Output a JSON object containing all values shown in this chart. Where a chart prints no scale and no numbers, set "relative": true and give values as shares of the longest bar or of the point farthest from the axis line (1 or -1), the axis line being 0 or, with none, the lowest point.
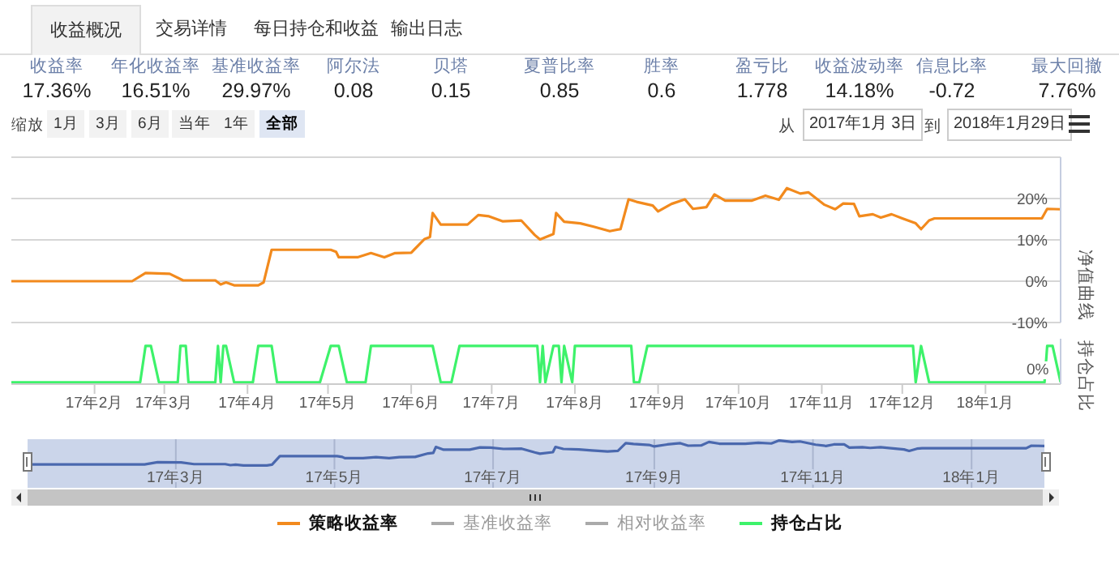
{
  "chart_data": [
    {
      "type": "other",
      "categories": [
        "收益率",
        "年化收益率",
        "基准收益率",
        "阿尔法",
        "贝塔",
        "夏普比率",
        "胜率",
        "盈亏比",
        "收益波动率",
        "信息比率",
        "最大回撤"
      ],
      "values": [
        17.36,
        16.51,
        29.97,
        0.08,
        0.15,
        0.85,
        0.6,
        1.778,
        14.18,
        -0.72,
        7.76
      ],
      "value_labels": [
        "17.36%",
        "16.51%",
        "29.97%",
        "0.08",
        "0.15",
        "0.85",
        "0.6",
        "1.778",
        "14.18%",
        "-0.72",
        "7.76%"
      ],
      "annotations": [
        "收益概况",
        "交易详情",
        "每日持仓和收益",
        "输出日志",
        "缩放",
        "1月",
        "3月",
        "6月",
        "当年",
        "1年",
        "全部",
        "从",
        "2017年1月 3日",
        "到",
        "2018年1月29日"
      ]
    },
    {
      "type": "line",
      "ylabel": "净值曲线",
      "xlim": [
        "2017-01-03",
        "2018-01-29"
      ],
      "ylim": [
        -10,
        30
      ],
      "yticks": [
        {
          "value": -10,
          "label": "-10%"
        },
        {
          "value": 0,
          "label": "0%"
        },
        {
          "value": 10,
          "label": "10%"
        },
        {
          "value": 20,
          "label": "20%"
        }
      ],
      "grid": "y",
      "tick_labels": "y",
      "legend": "bottom",
      "series": [
        {
          "name": "策略收益率",
          "color": "#f28a1d",
          "x": [
            "2017-01-03",
            "2017-02-17",
            "2017-02-22",
            "2017-03-03",
            "2017-03-08",
            "2017-03-20",
            "2017-03-22",
            "2017-03-24",
            "2017-03-27",
            "2017-04-05",
            "2017-04-07",
            "2017-04-10",
            "2017-05-02",
            "2017-05-04",
            "2017-05-05",
            "2017-05-12",
            "2017-05-17",
            "2017-05-22",
            "2017-05-26",
            "2017-06-01",
            "2017-06-06",
            "2017-06-08",
            "2017-06-09",
            "2017-06-12",
            "2017-06-22",
            "2017-06-26",
            "2017-06-30",
            "2017-07-05",
            "2017-07-12",
            "2017-07-17",
            "2017-07-19",
            "2017-07-24",
            "2017-07-25",
            "2017-07-28",
            "2017-08-03",
            "2017-08-08",
            "2017-08-14",
            "2017-08-18",
            "2017-08-21",
            "2017-08-24",
            "2017-08-30",
            "2017-09-01",
            "2017-09-06",
            "2017-09-11",
            "2017-09-14",
            "2017-09-19",
            "2017-09-22",
            "2017-09-26",
            "2017-10-06",
            "2017-10-11",
            "2017-10-16",
            "2017-10-19",
            "2017-10-24",
            "2017-10-27",
            "2017-11-02",
            "2017-11-06",
            "2017-11-09",
            "2017-11-13",
            "2017-11-15",
            "2017-11-20",
            "2017-11-23",
            "2017-11-27",
            "2017-12-01",
            "2017-12-06",
            "2017-12-08",
            "2017-12-11",
            "2017-12-13",
            "2018-01-22",
            "2018-01-24",
            "2018-01-29"
          ],
          "values": [
            0,
            0,
            2,
            1.8,
            0.2,
            0.2,
            -0.8,
            -0.3,
            -1,
            -1,
            -0.3,
            7.6,
            7.6,
            7.1,
            5.8,
            5.8,
            6.8,
            5.8,
            6.8,
            6.9,
            10.2,
            10.7,
            16.5,
            13.7,
            13.7,
            16,
            15.7,
            14.5,
            14.7,
            11.2,
            10.1,
            11.4,
            16.5,
            14.4,
            14,
            13.2,
            12.1,
            12.6,
            19.8,
            19.2,
            18.3,
            16.9,
            18.7,
            19.8,
            17.5,
            17.9,
            21,
            19.5,
            19.5,
            20.7,
            19.7,
            22.5,
            21.2,
            21.5,
            18.5,
            17.4,
            18.8,
            18.7,
            15.7,
            16.2,
            15.4,
            16.2,
            15.2,
            14,
            12.6,
            14.7,
            15.2,
            15.2,
            17.5,
            17.4
          ]
        },
        {
          "name": "基准收益率",
          "color": "#aaaaaa"
        },
        {
          "name": "相对收益率",
          "color": "#aaaaaa"
        }
      ]
    },
    {
      "type": "line",
      "ylabel": "持仓占比",
      "relative": true,
      "annotations": [
        "0%"
      ],
      "xlim": [
        "2017-01-03",
        "2018-01-29"
      ],
      "xticks": [
        {
          "value": "2017-02-03",
          "label": "17年2月"
        },
        {
          "value": "2017-03-01",
          "label": "17年3月"
        },
        {
          "value": "2017-04-01",
          "label": "17年4月"
        },
        {
          "value": "2017-05-01",
          "label": "17年5月"
        },
        {
          "value": "2017-06-01",
          "label": "17年6月"
        },
        {
          "value": "2017-07-01",
          "label": "17年7月"
        },
        {
          "value": "2017-08-01",
          "label": "17年8月"
        },
        {
          "value": "2017-09-01",
          "label": "17年9月"
        },
        {
          "value": "2017-10-01",
          "label": "17年10月"
        },
        {
          "value": "2017-11-01",
          "label": "17年11月"
        },
        {
          "value": "2017-12-01",
          "label": "17年12月"
        },
        {
          "value": "2018-01-01",
          "label": "18年1月"
        }
      ],
      "legend": "bottom",
      "series": [
        {
          "name": "持仓占比",
          "color": "#3df26a",
          "x": [
            "2017-01-03",
            "2017-02-20",
            "2017-02-22",
            "2017-02-24",
            "2017-02-27",
            "2017-03-06",
            "2017-03-07",
            "2017-03-09",
            "2017-03-10",
            "2017-03-20",
            "2017-03-21",
            "2017-03-22",
            "2017-03-23",
            "2017-03-24",
            "2017-03-27",
            "2017-04-03",
            "2017-04-05",
            "2017-04-10",
            "2017-04-12",
            "2017-04-28",
            "2017-05-02",
            "2017-05-05",
            "2017-05-08",
            "2017-05-15",
            "2017-05-17",
            "2017-06-09",
            "2017-06-12",
            "2017-06-16",
            "2017-06-19",
            "2017-07-18",
            "2017-07-19",
            "2017-07-20",
            "2017-07-21",
            "2017-07-24",
            "2017-07-26",
            "2017-07-27",
            "2017-07-28",
            "2017-07-31",
            "2017-08-01",
            "2017-08-22",
            "2017-08-23",
            "2017-08-25",
            "2017-08-28",
            "2017-12-05",
            "2017-12-06",
            "2017-12-08",
            "2017-12-11",
            "2018-01-23",
            "2018-01-24",
            "2018-01-26",
            "2018-01-29"
          ],
          "values": [
            0,
            0,
            1,
            1,
            0,
            0,
            1,
            1,
            0,
            0,
            1,
            0,
            1,
            1,
            0,
            0,
            1,
            1,
            0,
            0,
            1,
            1,
            0,
            0,
            1,
            1,
            0,
            0,
            1,
            1,
            0,
            1,
            0,
            1,
            1,
            0,
            1,
            0,
            1,
            1,
            0,
            0,
            1,
            1,
            0,
            1,
            0,
            0,
            1,
            1,
            0
          ]
        }
      ]
    },
    {
      "type": "line",
      "relative": true,
      "xlim": [
        "2017-01-03",
        "2018-01-29"
      ],
      "grid": "x",
      "xticks": [
        {
          "value": "2017-03-01",
          "label": "17年3月"
        },
        {
          "value": "2017-05-01",
          "label": "17年5月"
        },
        {
          "value": "2017-07-01",
          "label": "17年7月"
        },
        {
          "value": "2017-09-01",
          "label": "17年9月"
        },
        {
          "value": "2017-11-01",
          "label": "17年11月"
        },
        {
          "value": "2018-01-01",
          "label": "18年1月"
        }
      ],
      "bands": [
        {
          "axis": "x",
          "from": "2017-01-03",
          "to": "2018-01-29",
          "color": "#cbd5ea"
        }
      ],
      "series": [
        {
          "color": "#4a68ae",
          "x": [
            "2017-01-03",
            "2017-02-17",
            "2017-02-22",
            "2017-03-03",
            "2017-03-08",
            "2017-03-20",
            "2017-03-22",
            "2017-03-24",
            "2017-03-27",
            "2017-04-05",
            "2017-04-07",
            "2017-04-10",
            "2017-05-02",
            "2017-05-04",
            "2017-05-05",
            "2017-05-12",
            "2017-05-17",
            "2017-05-22",
            "2017-05-26",
            "2017-06-01",
            "2017-06-06",
            "2017-06-08",
            "2017-06-09",
            "2017-06-12",
            "2017-06-22",
            "2017-06-26",
            "2017-06-30",
            "2017-07-05",
            "2017-07-12",
            "2017-07-17",
            "2017-07-19",
            "2017-07-24",
            "2017-07-25",
            "2017-07-28",
            "2017-08-03",
            "2017-08-08",
            "2017-08-14",
            "2017-08-18",
            "2017-08-21",
            "2017-08-24",
            "2017-08-30",
            "2017-09-01",
            "2017-09-06",
            "2017-09-11",
            "2017-09-14",
            "2017-09-19",
            "2017-09-22",
            "2017-09-26",
            "2017-10-06",
            "2017-10-11",
            "2017-10-16",
            "2017-10-19",
            "2017-10-24",
            "2017-10-27",
            "2017-11-02",
            "2017-11-06",
            "2017-11-09",
            "2017-11-13",
            "2017-11-15",
            "2017-11-20",
            "2017-11-23",
            "2017-11-27",
            "2017-12-01",
            "2017-12-06",
            "2017-12-08",
            "2017-12-11",
            "2017-12-13",
            "2018-01-22",
            "2018-01-24",
            "2018-01-29"
          ],
          "values": [
            0.04,
            0.04,
            0.13,
            0.12,
            0.05,
            0.05,
            0.01,
            0.03,
            0,
            0,
            0.03,
            0.37,
            0.37,
            0.34,
            0.29,
            0.29,
            0.33,
            0.29,
            0.33,
            0.34,
            0.48,
            0.5,
            0.74,
            0.63,
            0.63,
            0.72,
            0.71,
            0.66,
            0.67,
            0.52,
            0.47,
            0.53,
            0.74,
            0.66,
            0.64,
            0.6,
            0.56,
            0.58,
            0.89,
            0.86,
            0.82,
            0.76,
            0.84,
            0.89,
            0.79,
            0.8,
            0.94,
            0.87,
            0.87,
            0.91,
            0.88,
            1,
            0.94,
            0.96,
            0.83,
            0.78,
            0.84,
            0.84,
            0.71,
            0.73,
            0.7,
            0.73,
            0.69,
            0.64,
            0.58,
            0.67,
            0.69,
            0.69,
            0.79,
            0.78
          ]
        }
      ]
    }
  ]
}
